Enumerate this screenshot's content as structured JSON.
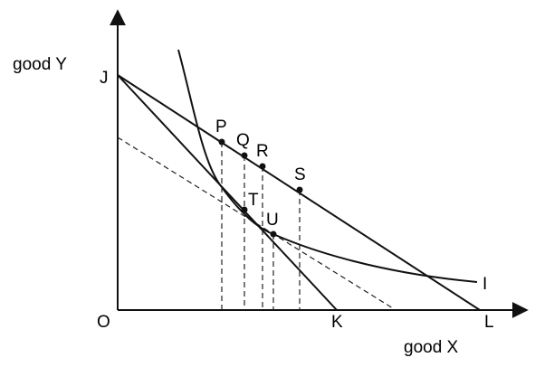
{
  "axes": {
    "y_label": "good Y",
    "x_label": "good X"
  },
  "labels": {
    "origin": "O",
    "J": "J",
    "K": "K",
    "L": "L",
    "P": "P",
    "Q": "Q",
    "R": "R",
    "S": "S",
    "T": "T",
    "U": "U",
    "indifference_curve": "I"
  }
}
